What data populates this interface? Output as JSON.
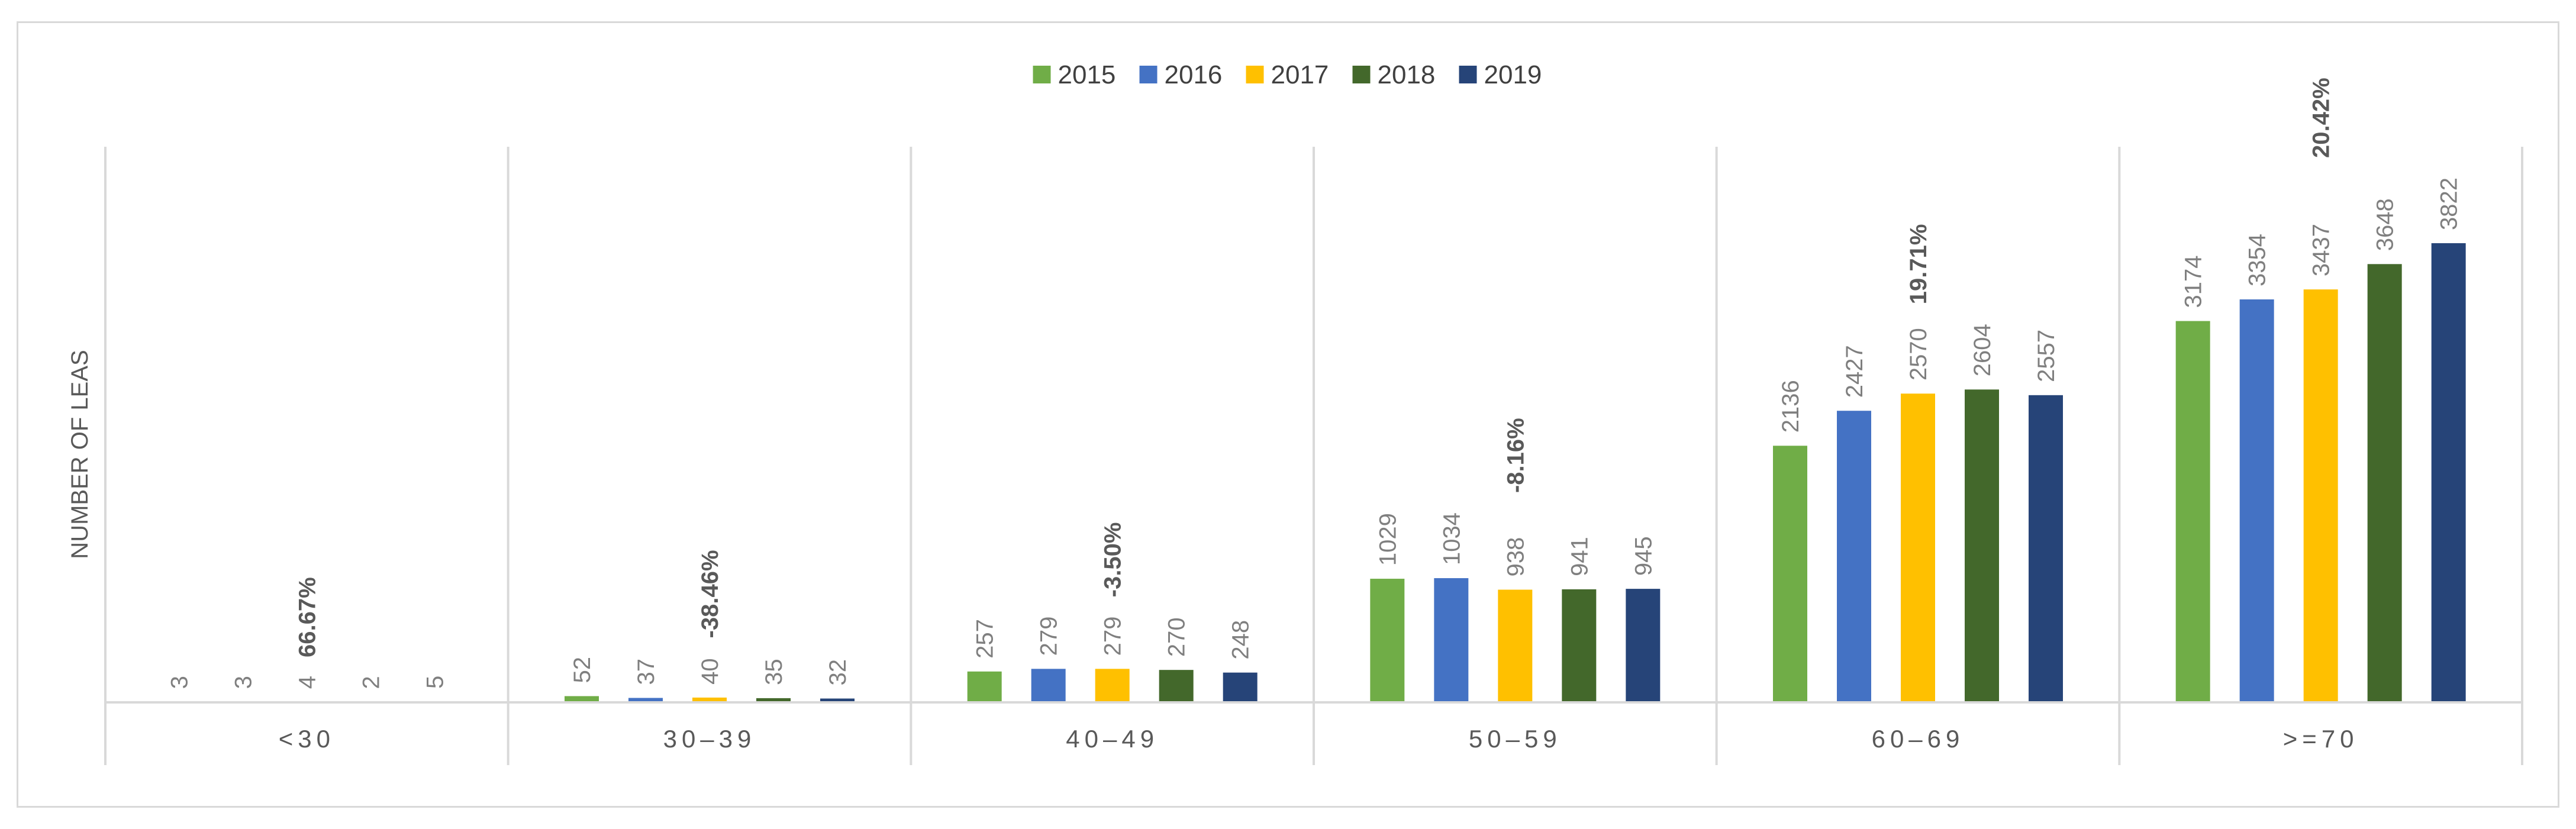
{
  "chart_data": {
    "type": "bar",
    "ylabel": "NUMBER OF LEAS",
    "xlabel": "",
    "title": "",
    "categories": [
      "<30",
      "30-39",
      "40-49",
      "50-59",
      "60-69",
      ">=70"
    ],
    "series": [
      {
        "name": "2015",
        "color": "#70ad47",
        "values": [
          3,
          52,
          257,
          1029,
          2136,
          3174
        ]
      },
      {
        "name": "2016",
        "color": "#4472c4",
        "values": [
          3,
          37,
          279,
          1034,
          2427,
          3354
        ]
      },
      {
        "name": "2017",
        "color": "#ffc000",
        "values": [
          4,
          40,
          279,
          938,
          2570,
          3437
        ]
      },
      {
        "name": "2018",
        "color": "#43682b",
        "values": [
          2,
          35,
          270,
          941,
          2604,
          3648
        ]
      },
      {
        "name": "2019",
        "color": "#264478",
        "values": [
          5,
          32,
          248,
          945,
          2557,
          3822
        ]
      }
    ],
    "percent_changes": [
      "66.67%",
      "-38.46%",
      "-3.50%",
      "-8.16%",
      "19.71%",
      "20.42%"
    ],
    "ylim": [
      0,
      4600
    ],
    "grid": false,
    "legend_position": "top-center"
  }
}
